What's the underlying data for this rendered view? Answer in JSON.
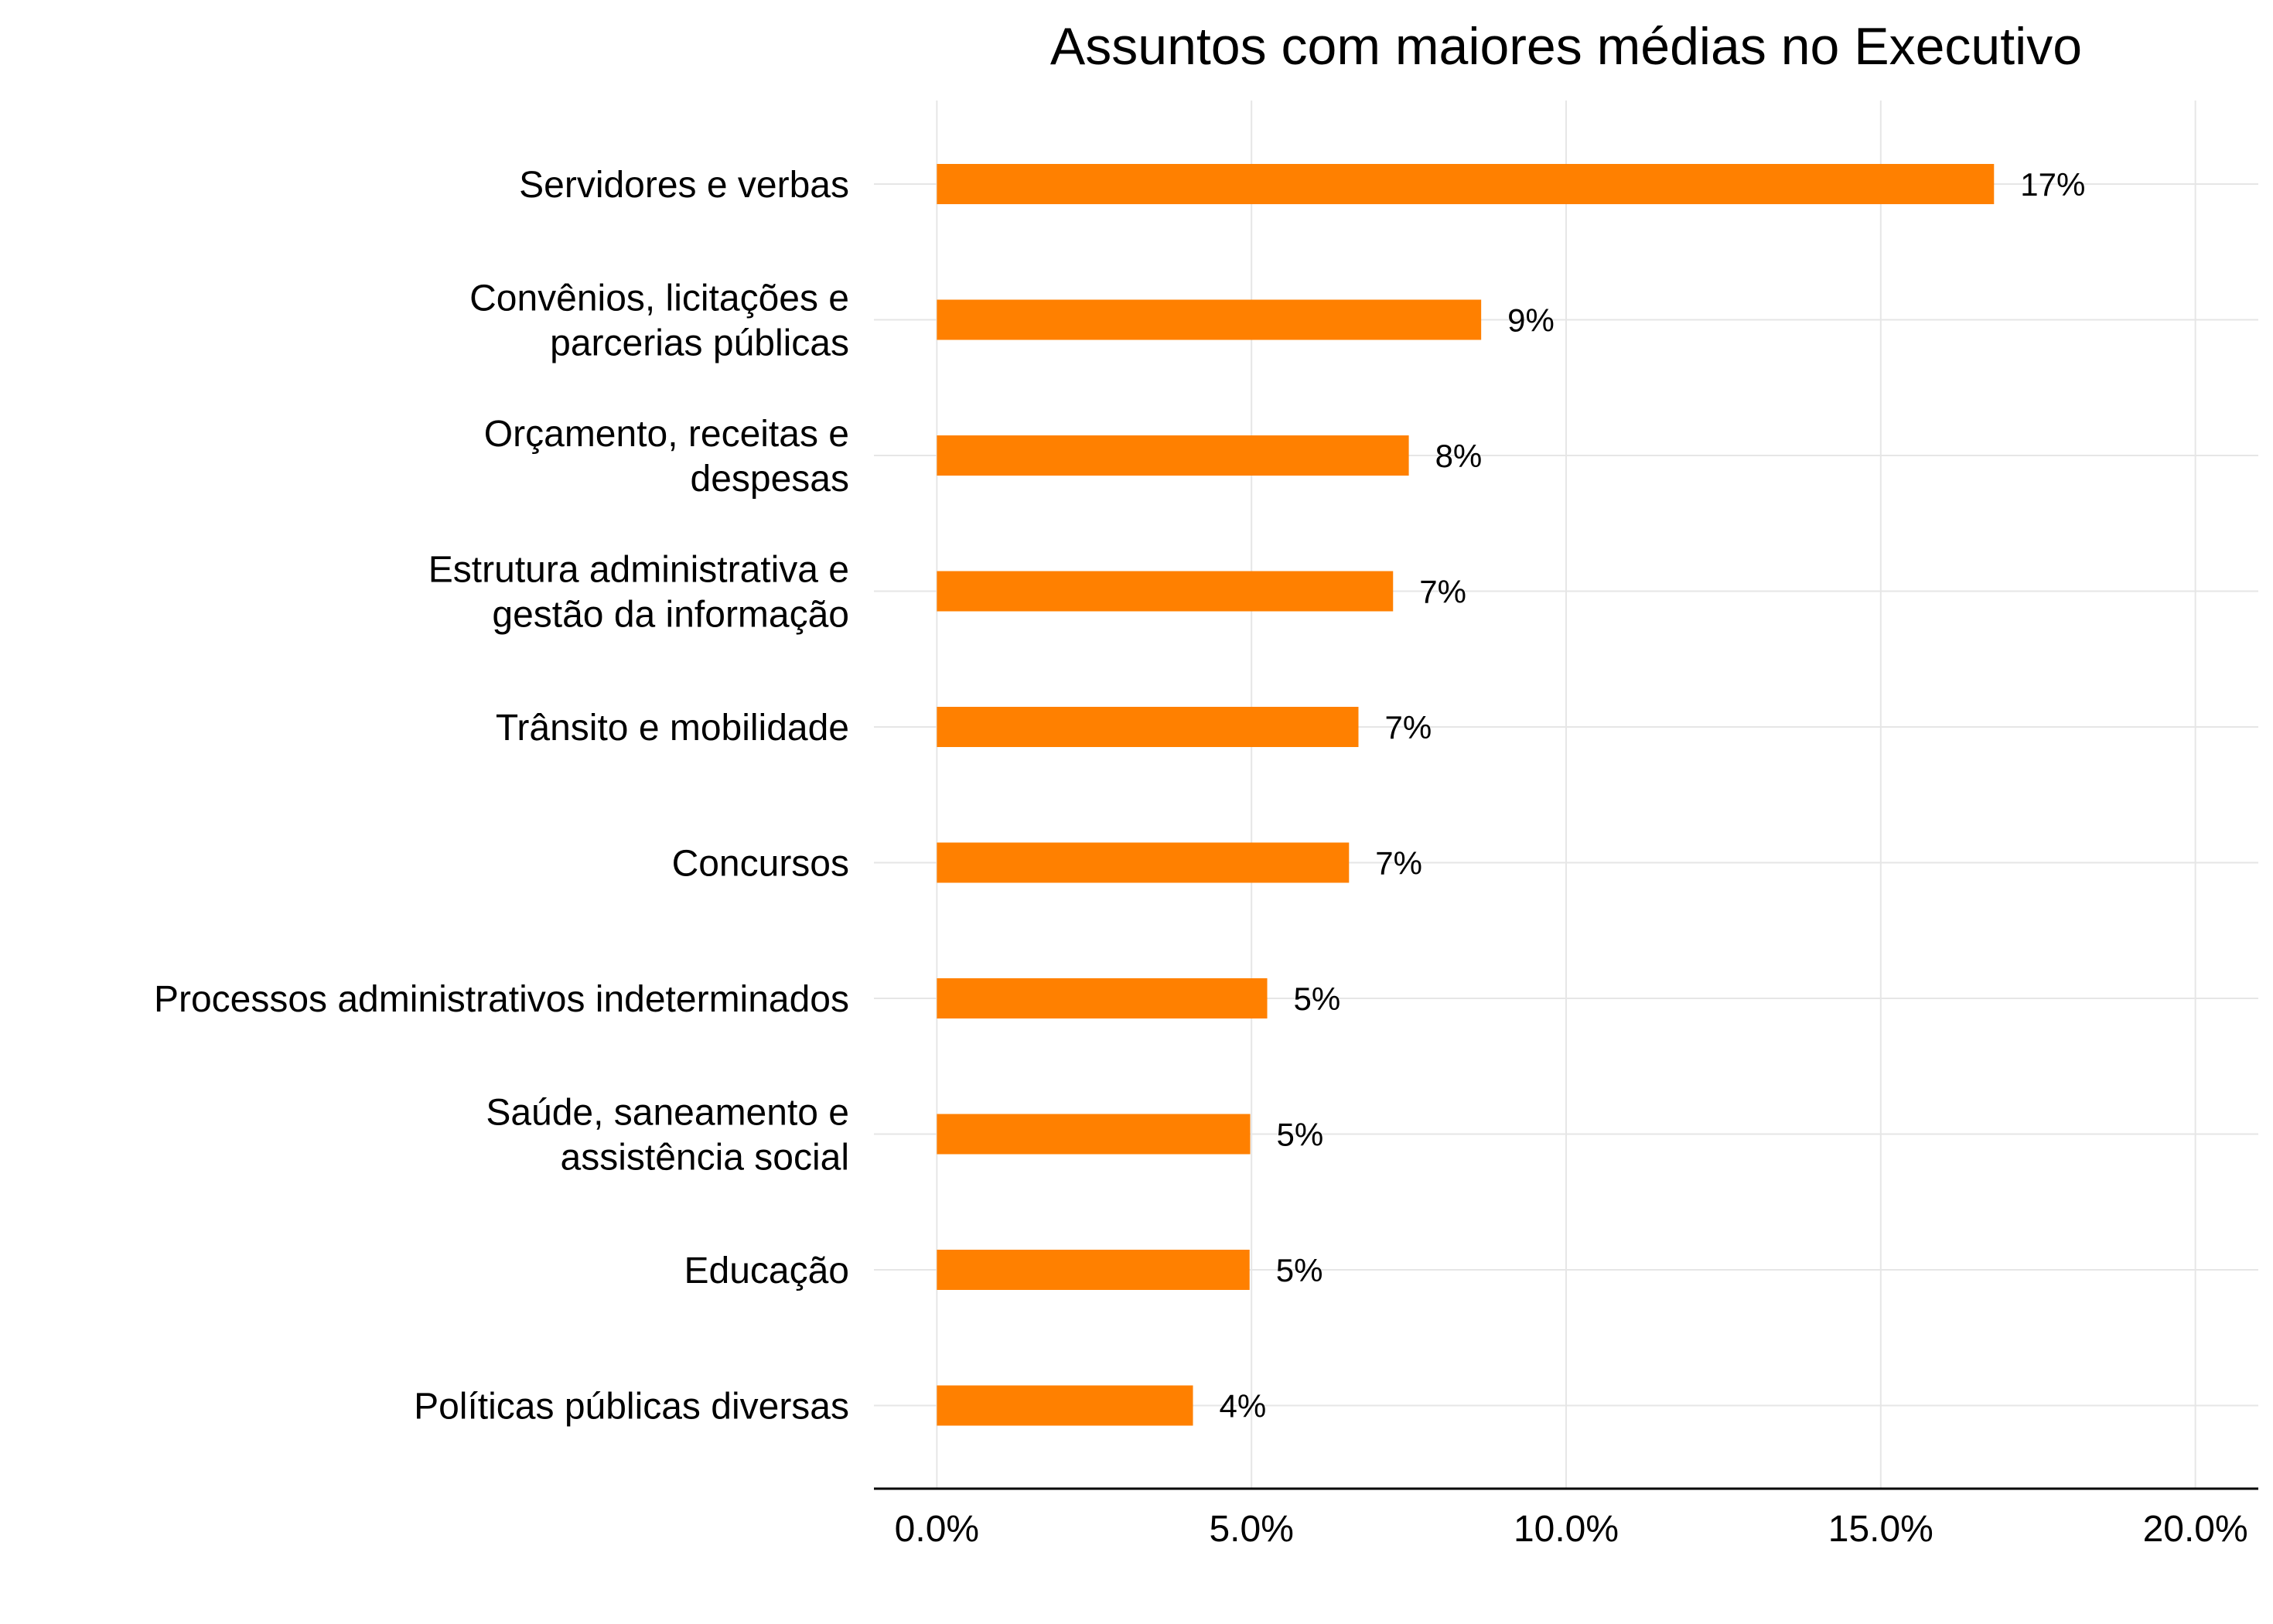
{
  "chart_data": {
    "type": "bar",
    "orientation": "horizontal",
    "title": "Assuntos com maiores médias no Executivo",
    "xlabel": "",
    "ylabel": "",
    "categories": [
      [
        "Servidores e verbas"
      ],
      [
        "Convênios, licitações e",
        "parcerias públicas"
      ],
      [
        "Orçamento, receitas e",
        "despesas"
      ],
      [
        "Estrutura administrativa e",
        "gestão da informação"
      ],
      [
        "Trânsito e mobilidade"
      ],
      [
        "Concursos"
      ],
      [
        "Processos administrativos indeterminados"
      ],
      [
        "Saúde, saneamento e",
        "assistência social"
      ],
      [
        "Educação"
      ],
      [
        "Políticas públicas diversas"
      ]
    ],
    "values": [
      16.8,
      8.65,
      7.5,
      7.25,
      6.7,
      6.55,
      5.25,
      4.98,
      4.97,
      4.07
    ],
    "data_labels": [
      "17%",
      "9%",
      "8%",
      "7%",
      "7%",
      "7%",
      "5%",
      "5%",
      "5%",
      "4%"
    ],
    "x_ticks": [
      0,
      5,
      10,
      15,
      20
    ],
    "x_tick_labels": [
      "0.0%",
      "5.0%",
      "10.0%",
      "15.0%",
      "20.0%"
    ],
    "xlim": [
      -1,
      21
    ],
    "grid": true,
    "legend": "none",
    "colors": {
      "bar": "#FF8000"
    }
  }
}
